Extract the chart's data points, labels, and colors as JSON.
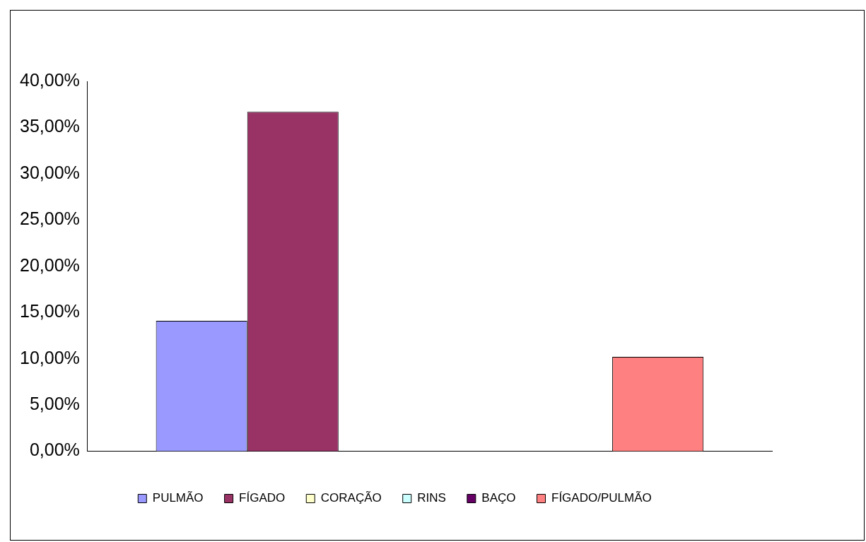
{
  "chart_data": {
    "type": "bar",
    "categories": [
      null
    ],
    "series": [
      {
        "name": "PULMÃO",
        "color": "#9999ff",
        "values": [
          14.1
        ]
      },
      {
        "name": "FÍGADO",
        "color": "#993366",
        "values": [
          36.7
        ]
      },
      {
        "name": "CORAÇÃO",
        "color": "#ffffcc",
        "values": [
          0
        ]
      },
      {
        "name": "RINS",
        "color": "#ccffff",
        "values": [
          0
        ]
      },
      {
        "name": "BAÇO",
        "color": "#660066",
        "values": [
          0
        ]
      },
      {
        "name": "FÍGADO/PULMÃO",
        "color": "#ff8080",
        "values": [
          10.2
        ]
      }
    ],
    "ylim": [
      0,
      40
    ],
    "yticks": [
      {
        "value": 0,
        "label": "0,00%"
      },
      {
        "value": 5,
        "label": "5,00%"
      },
      {
        "value": 10,
        "label": "10,00%"
      },
      {
        "value": 15,
        "label": "15,00%"
      },
      {
        "value": 20,
        "label": "20,00%"
      },
      {
        "value": 25,
        "label": "25,00%"
      },
      {
        "value": 30,
        "label": "30,00%"
      },
      {
        "value": 35,
        "label": "35,00%"
      },
      {
        "value": 40,
        "label": "40,00%"
      }
    ],
    "grid": false,
    "legend": "bottom"
  }
}
